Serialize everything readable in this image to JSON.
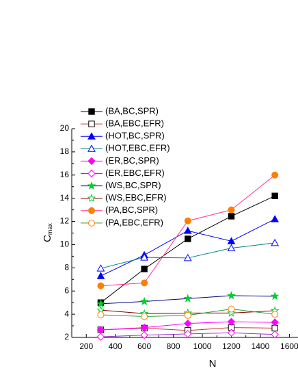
{
  "chart_data": {
    "type": "line",
    "x_label": "N",
    "y_label": {
      "main": "C",
      "sub": "max"
    },
    "x": [
      300,
      600,
      900,
      1200,
      1500
    ],
    "xlim": [
      100,
      1650
    ],
    "xticks": [
      200,
      400,
      600,
      800,
      1000,
      1200,
      1400,
      1600
    ],
    "ylim": [
      2,
      20
    ],
    "yticks": [
      2,
      4,
      6,
      8,
      10,
      12,
      14,
      16,
      18,
      20
    ],
    "legend": "upper-left",
    "series": [
      {
        "name": "(BA,BC,SPR)",
        "color": "#000000",
        "line_color": "#000000",
        "marker": "square",
        "filled": true,
        "values": [
          5.0,
          7.9,
          10.5,
          12.45,
          14.2
        ]
      },
      {
        "name": "(BA,EBC,EFR)",
        "color": "#000000",
        "line_color": "#cc3333",
        "marker": "square",
        "filled": false,
        "values": [
          2.65,
          2.8,
          2.6,
          2.85,
          2.8
        ]
      },
      {
        "name": "(HOT,BC,SPR)",
        "color": "#0000ff",
        "line_color": "#0000ff",
        "marker": "triangle",
        "filled": true,
        "values": [
          7.3,
          9.1,
          11.2,
          10.3,
          12.2
        ]
      },
      {
        "name": "(HOT,EBC,EFR)",
        "color": "#0000ff",
        "line_color": "#008080",
        "marker": "triangle",
        "filled": false,
        "values": [
          7.95,
          8.9,
          8.85,
          9.7,
          10.15
        ]
      },
      {
        "name": "(ER,BC,SPR)",
        "color": "#ff00ff",
        "line_color": "#ff00ff",
        "marker": "diamond",
        "filled": true,
        "values": [
          2.65,
          2.85,
          3.2,
          3.35,
          3.3
        ]
      },
      {
        "name": "(ER,EBC,EFR)",
        "color": "#ff00ff",
        "line_color": "#9933cc",
        "marker": "diamond",
        "filled": false,
        "values": [
          2.05,
          2.2,
          2.3,
          2.4,
          2.25
        ]
      },
      {
        "name": "(WS,BC,SPR)",
        "color": "#00cc33",
        "line_color": "#000080",
        "marker": "star",
        "filled": true,
        "values": [
          4.9,
          5.1,
          5.35,
          5.6,
          5.55
        ]
      },
      {
        "name": "(WS,EBC,EFR)",
        "color": "#00cc33",
        "line_color": "#800000",
        "marker": "star",
        "filled": false,
        "values": [
          4.35,
          4.05,
          4.1,
          4.1,
          4.3
        ]
      },
      {
        "name": "(PA,BC,SPR)",
        "color": "#ff8000",
        "line_color": "#ff3399",
        "marker": "circle",
        "filled": true,
        "values": [
          6.45,
          6.7,
          12.05,
          13.0,
          16.0
        ]
      },
      {
        "name": "(PA,EBC,EFR)",
        "color": "#ff8000",
        "line_color": "#339933",
        "marker": "circle",
        "filled": false,
        "values": [
          3.95,
          3.8,
          3.9,
          4.45,
          4.0
        ]
      }
    ]
  }
}
